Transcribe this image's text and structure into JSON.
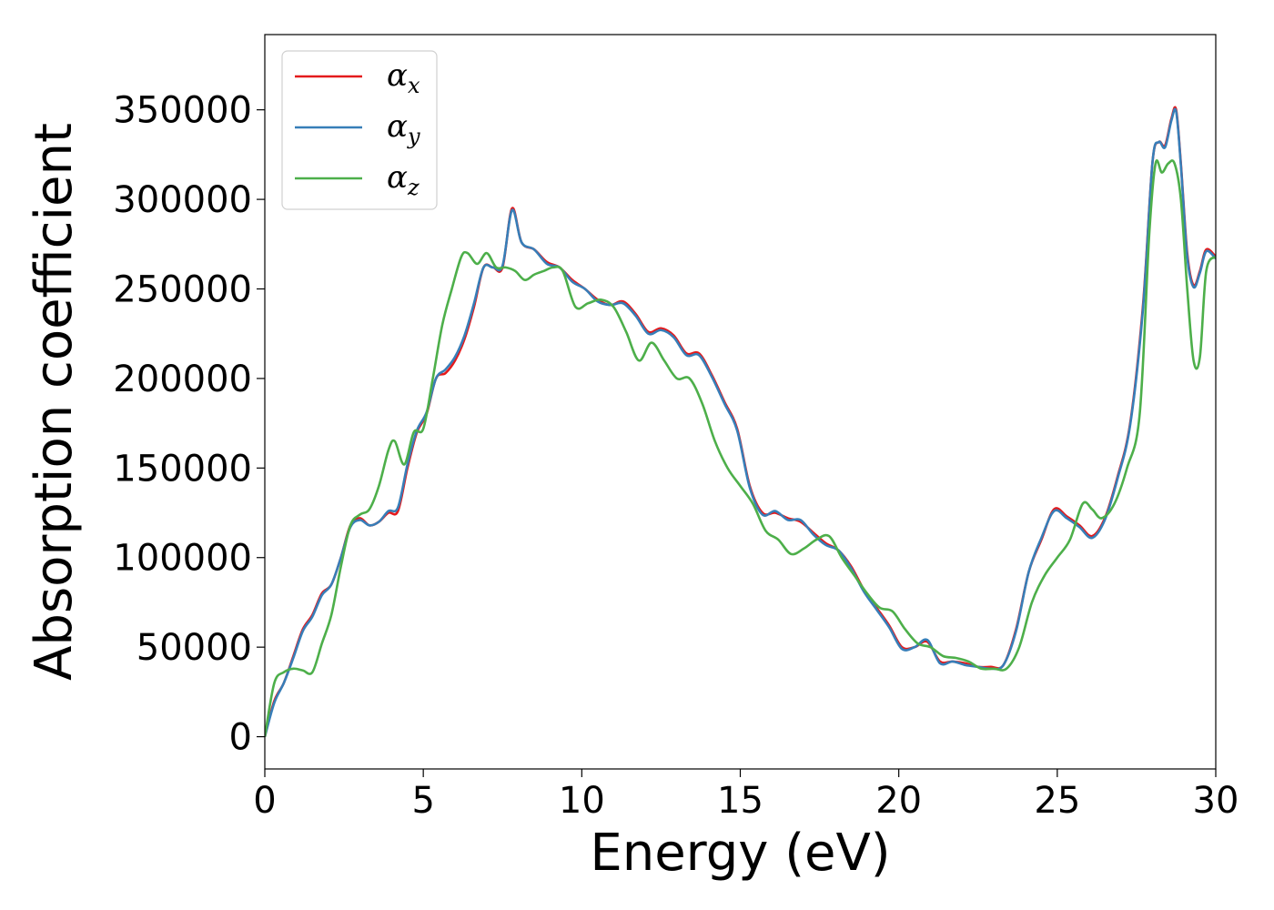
{
  "chart_data": {
    "type": "line",
    "title": "",
    "xlabel": "Energy (eV)",
    "ylabel": "Absorption coefficient",
    "xlim": [
      0,
      30
    ],
    "ylim": [
      -18000,
      392000
    ],
    "xticks": [
      0,
      5,
      10,
      15,
      20,
      25,
      30
    ],
    "xtick_labels": [
      "0",
      "5",
      "10",
      "15",
      "20",
      "25",
      "30"
    ],
    "yticks": [
      0,
      50000,
      100000,
      150000,
      200000,
      250000,
      300000,
      350000
    ],
    "ytick_labels": [
      "0",
      "50000",
      "100000",
      "150000",
      "200000",
      "250000",
      "300000",
      "350000"
    ],
    "grid": false,
    "legend_position": "top-left",
    "series": [
      {
        "name": "α_x",
        "label_main": "α",
        "label_sub": "x",
        "color": "#e41a1c",
        "x": [
          0,
          0.3,
          0.6,
          0.9,
          1.2,
          1.5,
          1.8,
          2.1,
          2.4,
          2.7,
          3.0,
          3.3,
          3.6,
          3.9,
          4.2,
          4.5,
          4.8,
          5.1,
          5.4,
          5.7,
          6.0,
          6.3,
          6.6,
          6.9,
          7.2,
          7.5,
          7.8,
          8.1,
          8.5,
          8.9,
          9.3,
          9.7,
          10.1,
          10.5,
          10.9,
          11.3,
          11.7,
          12.1,
          12.5,
          12.9,
          13.3,
          13.7,
          14.1,
          14.5,
          14.9,
          15.3,
          15.7,
          16.1,
          16.5,
          16.9,
          17.3,
          17.7,
          18.1,
          18.5,
          18.9,
          19.3,
          19.7,
          20.1,
          20.5,
          20.9,
          21.3,
          21.7,
          22.1,
          22.5,
          22.9,
          23.3,
          23.7,
          24.1,
          24.5,
          24.9,
          25.3,
          25.7,
          26.1,
          26.5,
          26.9,
          27.3,
          27.7,
          28.0,
          28.2,
          28.4,
          28.6,
          28.75,
          28.9,
          29.1,
          29.3,
          29.5,
          29.7,
          30.0
        ],
        "y": [
          0,
          20000,
          30000,
          45000,
          60000,
          68000,
          80000,
          85000,
          100000,
          118000,
          122000,
          118000,
          120000,
          125000,
          126000,
          150000,
          170000,
          180000,
          200000,
          203000,
          210000,
          222000,
          240000,
          262000,
          262000,
          262000,
          295000,
          276000,
          272000,
          265000,
          262000,
          255000,
          250000,
          244000,
          241000,
          243000,
          236000,
          226000,
          228000,
          224000,
          214000,
          214000,
          202000,
          187000,
          172000,
          140000,
          125000,
          125000,
          122000,
          120000,
          114000,
          108000,
          104000,
          95000,
          82000,
          72000,
          62000,
          50000,
          50000,
          53000,
          42000,
          42000,
          41000,
          39000,
          39000,
          40000,
          60000,
          92000,
          110000,
          127000,
          123000,
          118000,
          112000,
          122000,
          145000,
          175000,
          240000,
          320000,
          332000,
          330000,
          345000,
          350000,
          320000,
          270000,
          252000,
          260000,
          272000,
          268000
        ]
      },
      {
        "name": "α_y",
        "label_main": "α",
        "label_sub": "y",
        "color": "#377eb8",
        "x": [
          0,
          0.3,
          0.6,
          0.9,
          1.2,
          1.5,
          1.8,
          2.1,
          2.4,
          2.7,
          3.0,
          3.3,
          3.6,
          3.9,
          4.2,
          4.5,
          4.8,
          5.1,
          5.4,
          5.7,
          6.0,
          6.3,
          6.6,
          6.9,
          7.2,
          7.5,
          7.8,
          8.1,
          8.5,
          8.9,
          9.3,
          9.7,
          10.1,
          10.5,
          10.9,
          11.3,
          11.7,
          12.1,
          12.5,
          12.9,
          13.3,
          13.7,
          14.1,
          14.5,
          14.9,
          15.3,
          15.7,
          16.1,
          16.5,
          16.9,
          17.3,
          17.7,
          18.1,
          18.5,
          18.9,
          19.3,
          19.7,
          20.1,
          20.5,
          20.9,
          21.3,
          21.7,
          22.1,
          22.5,
          22.9,
          23.3,
          23.7,
          24.1,
          24.5,
          24.9,
          25.3,
          25.7,
          26.1,
          26.5,
          26.9,
          27.3,
          27.7,
          28.0,
          28.2,
          28.4,
          28.6,
          28.75,
          28.9,
          29.1,
          29.3,
          29.5,
          29.7,
          30.0
        ],
        "y": [
          0,
          19000,
          30000,
          44000,
          59000,
          67000,
          79000,
          85000,
          100000,
          117000,
          121000,
          118000,
          120000,
          126000,
          128000,
          152000,
          171000,
          181000,
          200000,
          205000,
          212000,
          224000,
          242000,
          262000,
          262000,
          263000,
          294000,
          276000,
          272000,
          264000,
          262000,
          254000,
          250000,
          243000,
          241000,
          242000,
          235000,
          225000,
          227000,
          223000,
          213000,
          213000,
          201000,
          186000,
          171000,
          139000,
          124000,
          126000,
          121000,
          121000,
          113000,
          107000,
          104000,
          94000,
          81000,
          71000,
          61000,
          49000,
          50000,
          54000,
          41000,
          42000,
          40000,
          39000,
          38000,
          40000,
          59000,
          92000,
          111000,
          126000,
          122000,
          117000,
          111000,
          121000,
          144000,
          174000,
          238000,
          320000,
          332000,
          329000,
          344000,
          349000,
          319000,
          268000,
          251000,
          259000,
          271000,
          267000
        ]
      },
      {
        "name": "α_z",
        "label_main": "α",
        "label_sub": "z",
        "color": "#4daf4a",
        "x": [
          0,
          0.3,
          0.6,
          0.9,
          1.2,
          1.5,
          1.8,
          2.1,
          2.4,
          2.7,
          3.0,
          3.3,
          3.6,
          3.9,
          4.1,
          4.4,
          4.7,
          5.0,
          5.3,
          5.6,
          5.9,
          6.2,
          6.4,
          6.7,
          7.0,
          7.3,
          7.6,
          7.9,
          8.2,
          8.5,
          8.8,
          9.1,
          9.4,
          9.8,
          10.2,
          10.6,
          11.0,
          11.4,
          11.8,
          12.2,
          12.6,
          13.0,
          13.4,
          13.8,
          14.2,
          14.6,
          15.0,
          15.4,
          15.8,
          16.2,
          16.6,
          17.0,
          17.4,
          17.8,
          18.2,
          18.6,
          19.0,
          19.4,
          19.8,
          20.2,
          20.6,
          21.0,
          21.4,
          21.8,
          22.2,
          22.6,
          23.0,
          23.4,
          23.8,
          24.2,
          24.6,
          25.0,
          25.4,
          25.8,
          26.1,
          26.4,
          26.8,
          27.2,
          27.6,
          27.9,
          28.1,
          28.3,
          28.5,
          28.7,
          28.9,
          29.1,
          29.3,
          29.5,
          29.7,
          30.0
        ],
        "y": [
          0,
          30000,
          36000,
          38000,
          37000,
          36000,
          52000,
          68000,
          95000,
          118000,
          124000,
          127000,
          140000,
          160000,
          165000,
          152000,
          170000,
          172000,
          200000,
          230000,
          250000,
          268000,
          270000,
          264000,
          270000,
          262000,
          262000,
          260000,
          255000,
          258000,
          260000,
          262000,
          260000,
          240000,
          242000,
          244000,
          240000,
          226000,
          210000,
          220000,
          210000,
          200000,
          200000,
          186000,
          165000,
          150000,
          140000,
          130000,
          115000,
          110000,
          102000,
          105000,
          110000,
          112000,
          100000,
          90000,
          80000,
          72000,
          70000,
          60000,
          52000,
          50000,
          45000,
          44000,
          42000,
          38000,
          38000,
          38000,
          50000,
          75000,
          90000,
          100000,
          110000,
          130000,
          127000,
          122000,
          130000,
          150000,
          180000,
          280000,
          320000,
          315000,
          320000,
          320000,
          300000,
          250000,
          210000,
          212000,
          260000,
          268000
        ]
      }
    ]
  }
}
